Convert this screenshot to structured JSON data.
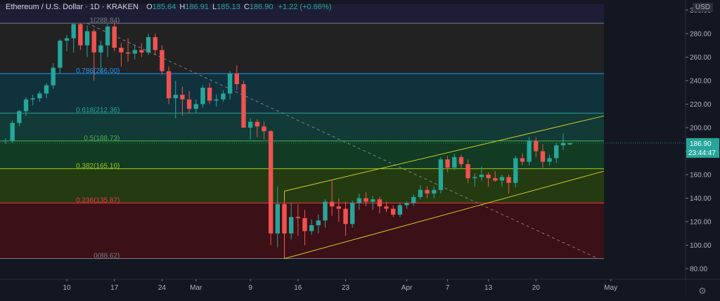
{
  "header": {
    "title": "Ethereum / U.S. Dollar · 1D · KRAKEN",
    "ohlc": [
      {
        "label": "O",
        "value": "185.64"
      },
      {
        "label": "H",
        "value": "186.91"
      },
      {
        "label": "L",
        "value": "185.13"
      },
      {
        "label": "C",
        "value": "186.90"
      }
    ],
    "change": "+1.22 (+0.66%)",
    "currency": "USD"
  },
  "price_tag": {
    "value": "186.90",
    "countdown": "23:44:47"
  },
  "colors": {
    "up": "#26a69a",
    "down": "#ef5350",
    "channel": "#cccc29",
    "trendline": "#9598a1"
  },
  "chart_data": {
    "type": "candlestick",
    "y_axis": {
      "min": 80,
      "max": 305,
      "ticks": [
        80,
        100,
        120,
        140,
        160,
        180,
        200,
        220,
        240,
        260,
        280,
        300
      ]
    },
    "y_tick_labels": [
      "80.00",
      "100.00",
      "120.00",
      "140.00",
      "160.00",
      "180.00",
      "200.00",
      "220.00",
      "240.00",
      "260.00",
      "280.00",
      "300.00"
    ],
    "x_ticks": [
      {
        "label": "10",
        "day": 9
      },
      {
        "label": "17",
        "day": 16
      },
      {
        "label": "24",
        "day": 23
      },
      {
        "label": "Mar",
        "day": 28
      },
      {
        "label": "9",
        "day": 36
      },
      {
        "label": "16",
        "day": 43
      },
      {
        "label": "23",
        "day": 50
      },
      {
        "label": "Apr",
        "day": 59
      },
      {
        "label": "7",
        "day": 65
      },
      {
        "label": "13",
        "day": 71
      },
      {
        "label": "20",
        "day": 78
      },
      {
        "label": "May",
        "day": 89
      }
    ],
    "fib_levels": [
      {
        "label": "1(288.84)",
        "value": 288.84,
        "color": "#787b86"
      },
      {
        "label": "0.786(246.00)",
        "value": 246.0,
        "color": "#2196f3"
      },
      {
        "label": "0.618(212.36)",
        "value": 212.36,
        "color": "#26a69a"
      },
      {
        "label": "0.5(188.73)",
        "value": 188.73,
        "color": "#4caf50"
      },
      {
        "label": "0.382(165.10)",
        "value": 165.1,
        "color": "#9ccc1c"
      },
      {
        "label": "0.236(135.87)",
        "value": 135.87,
        "color": "#f23645"
      },
      {
        "label": "0(88.62)",
        "value": 88.62,
        "color": "#787b86"
      }
    ],
    "fib_fills": [
      "#1e1d36",
      "#222222",
      "#10323d",
      "#123a36",
      "#113b22",
      "#243b12",
      "#3b1016"
    ],
    "fib_x_range": [
      8,
      88
    ],
    "channel": {
      "lower": [
        {
          "day": 41,
          "price": 88.6
        },
        {
          "day": 88,
          "price": 163
        }
      ],
      "upper": [
        {
          "day": 41,
          "price": 146
        },
        {
          "day": 88,
          "price": 210
        }
      ]
    },
    "trendline": [
      {
        "day": 12,
        "price": 288.8
      },
      {
        "day": 87,
        "price": 89
      }
    ],
    "candles": [
      {
        "d": 0,
        "o": 189,
        "h": 191,
        "l": 186,
        "c": 189
      },
      {
        "d": 1,
        "o": 189,
        "h": 206,
        "l": 187,
        "c": 204
      },
      {
        "d": 2,
        "o": 204,
        "h": 215,
        "l": 201,
        "c": 214
      },
      {
        "d": 3,
        "o": 214,
        "h": 226,
        "l": 210,
        "c": 224
      },
      {
        "d": 4,
        "o": 224,
        "h": 228,
        "l": 219,
        "c": 225
      },
      {
        "d": 5,
        "o": 225,
        "h": 231,
        "l": 222,
        "c": 229
      },
      {
        "d": 6,
        "o": 229,
        "h": 238,
        "l": 225,
        "c": 236
      },
      {
        "d": 7,
        "o": 236,
        "h": 255,
        "l": 233,
        "c": 251
      },
      {
        "d": 8,
        "o": 251,
        "h": 275,
        "l": 246,
        "c": 274
      },
      {
        "d": 9,
        "o": 274,
        "h": 279,
        "l": 265,
        "c": 276
      },
      {
        "d": 10,
        "o": 276,
        "h": 289,
        "l": 264,
        "c": 288
      },
      {
        "d": 11,
        "o": 288,
        "h": 289,
        "l": 266,
        "c": 270
      },
      {
        "d": 12,
        "o": 270,
        "h": 287,
        "l": 260,
        "c": 282
      },
      {
        "d": 13,
        "o": 282,
        "h": 284,
        "l": 240,
        "c": 264
      },
      {
        "d": 14,
        "o": 264,
        "h": 274,
        "l": 246,
        "c": 270
      },
      {
        "d": 15,
        "o": 270,
        "h": 288,
        "l": 260,
        "c": 286
      },
      {
        "d": 16,
        "o": 286,
        "h": 290,
        "l": 265,
        "c": 268
      },
      {
        "d": 17,
        "o": 268,
        "h": 272,
        "l": 252,
        "c": 264
      },
      {
        "d": 18,
        "o": 264,
        "h": 276,
        "l": 256,
        "c": 263
      },
      {
        "d": 19,
        "o": 263,
        "h": 270,
        "l": 258,
        "c": 266
      },
      {
        "d": 20,
        "o": 266,
        "h": 272,
        "l": 260,
        "c": 264
      },
      {
        "d": 21,
        "o": 264,
        "h": 280,
        "l": 262,
        "c": 277
      },
      {
        "d": 22,
        "o": 277,
        "h": 280,
        "l": 262,
        "c": 266
      },
      {
        "d": 23,
        "o": 266,
        "h": 270,
        "l": 245,
        "c": 248
      },
      {
        "d": 24,
        "o": 248,
        "h": 252,
        "l": 220,
        "c": 225
      },
      {
        "d": 25,
        "o": 225,
        "h": 240,
        "l": 208,
        "c": 228
      },
      {
        "d": 26,
        "o": 228,
        "h": 235,
        "l": 210,
        "c": 224
      },
      {
        "d": 27,
        "o": 224,
        "h": 231,
        "l": 212,
        "c": 216
      },
      {
        "d": 28,
        "o": 216,
        "h": 224,
        "l": 212,
        "c": 220
      },
      {
        "d": 29,
        "o": 220,
        "h": 236,
        "l": 217,
        "c": 234
      },
      {
        "d": 30,
        "o": 234,
        "h": 238,
        "l": 220,
        "c": 223
      },
      {
        "d": 31,
        "o": 223,
        "h": 228,
        "l": 218,
        "c": 224
      },
      {
        "d": 32,
        "o": 224,
        "h": 232,
        "l": 222,
        "c": 229
      },
      {
        "d": 33,
        "o": 229,
        "h": 248,
        "l": 224,
        "c": 246
      },
      {
        "d": 34,
        "o": 246,
        "h": 253,
        "l": 232,
        "c": 237
      },
      {
        "d": 35,
        "o": 237,
        "h": 240,
        "l": 202,
        "c": 200
      },
      {
        "d": 36,
        "o": 200,
        "h": 208,
        "l": 190,
        "c": 205
      },
      {
        "d": 37,
        "o": 205,
        "h": 207,
        "l": 192,
        "c": 201
      },
      {
        "d": 38,
        "o": 201,
        "h": 205,
        "l": 190,
        "c": 197
      },
      {
        "d": 39,
        "o": 197,
        "h": 198,
        "l": 100,
        "c": 110
      },
      {
        "d": 40,
        "o": 110,
        "h": 150,
        "l": 98,
        "c": 135
      },
      {
        "d": 41,
        "o": 135,
        "h": 138,
        "l": 90,
        "c": 110
      },
      {
        "d": 42,
        "o": 110,
        "h": 136,
        "l": 105,
        "c": 124
      },
      {
        "d": 43,
        "o": 124,
        "h": 135,
        "l": 108,
        "c": 123
      },
      {
        "d": 44,
        "o": 123,
        "h": 130,
        "l": 100,
        "c": 112
      },
      {
        "d": 45,
        "o": 112,
        "h": 122,
        "l": 109,
        "c": 117
      },
      {
        "d": 46,
        "o": 117,
        "h": 126,
        "l": 110,
        "c": 121
      },
      {
        "d": 47,
        "o": 121,
        "h": 139,
        "l": 115,
        "c": 137
      },
      {
        "d": 48,
        "o": 137,
        "h": 155,
        "l": 125,
        "c": 133
      },
      {
        "d": 49,
        "o": 133,
        "h": 140,
        "l": 120,
        "c": 131
      },
      {
        "d": 50,
        "o": 131,
        "h": 137,
        "l": 108,
        "c": 118
      },
      {
        "d": 51,
        "o": 118,
        "h": 138,
        "l": 115,
        "c": 136
      },
      {
        "d": 52,
        "o": 136,
        "h": 144,
        "l": 130,
        "c": 140
      },
      {
        "d": 53,
        "o": 140,
        "h": 145,
        "l": 133,
        "c": 137
      },
      {
        "d": 54,
        "o": 137,
        "h": 142,
        "l": 130,
        "c": 139
      },
      {
        "d": 55,
        "o": 139,
        "h": 141,
        "l": 127,
        "c": 133
      },
      {
        "d": 56,
        "o": 133,
        "h": 137,
        "l": 128,
        "c": 131
      },
      {
        "d": 57,
        "o": 131,
        "h": 134,
        "l": 124,
        "c": 126
      },
      {
        "d": 58,
        "o": 126,
        "h": 136,
        "l": 124,
        "c": 134
      },
      {
        "d": 59,
        "o": 134,
        "h": 137,
        "l": 131,
        "c": 136
      },
      {
        "d": 60,
        "o": 136,
        "h": 143,
        "l": 133,
        "c": 141
      },
      {
        "d": 61,
        "o": 141,
        "h": 151,
        "l": 139,
        "c": 147
      },
      {
        "d": 62,
        "o": 147,
        "h": 150,
        "l": 140,
        "c": 144
      },
      {
        "d": 63,
        "o": 144,
        "h": 150,
        "l": 140,
        "c": 147
      },
      {
        "d": 64,
        "o": 147,
        "h": 175,
        "l": 144,
        "c": 173
      },
      {
        "d": 65,
        "o": 173,
        "h": 176,
        "l": 162,
        "c": 166
      },
      {
        "d": 66,
        "o": 166,
        "h": 178,
        "l": 164,
        "c": 175
      },
      {
        "d": 67,
        "o": 175,
        "h": 177,
        "l": 166,
        "c": 169
      },
      {
        "d": 68,
        "o": 169,
        "h": 173,
        "l": 153,
        "c": 157
      },
      {
        "d": 69,
        "o": 157,
        "h": 161,
        "l": 150,
        "c": 158
      },
      {
        "d": 70,
        "o": 158,
        "h": 167,
        "l": 155,
        "c": 160
      },
      {
        "d": 71,
        "o": 160,
        "h": 162,
        "l": 150,
        "c": 157
      },
      {
        "d": 72,
        "o": 157,
        "h": 163,
        "l": 154,
        "c": 155
      },
      {
        "d": 73,
        "o": 155,
        "h": 160,
        "l": 150,
        "c": 158
      },
      {
        "d": 74,
        "o": 158,
        "h": 160,
        "l": 144,
        "c": 153
      },
      {
        "d": 75,
        "o": 153,
        "h": 176,
        "l": 149,
        "c": 174
      },
      {
        "d": 76,
        "o": 174,
        "h": 178,
        "l": 168,
        "c": 171
      },
      {
        "d": 77,
        "o": 171,
        "h": 192,
        "l": 168,
        "c": 189
      },
      {
        "d": 78,
        "o": 189,
        "h": 192,
        "l": 175,
        "c": 180
      },
      {
        "d": 79,
        "o": 180,
        "h": 186,
        "l": 166,
        "c": 171
      },
      {
        "d": 80,
        "o": 171,
        "h": 177,
        "l": 168,
        "c": 174
      },
      {
        "d": 81,
        "o": 174,
        "h": 187,
        "l": 170,
        "c": 185
      },
      {
        "d": 82,
        "o": 185,
        "h": 195,
        "l": 181,
        "c": 187
      },
      {
        "d": 83,
        "o": 185.64,
        "h": 186.91,
        "l": 185.13,
        "c": 186.9
      }
    ]
  }
}
